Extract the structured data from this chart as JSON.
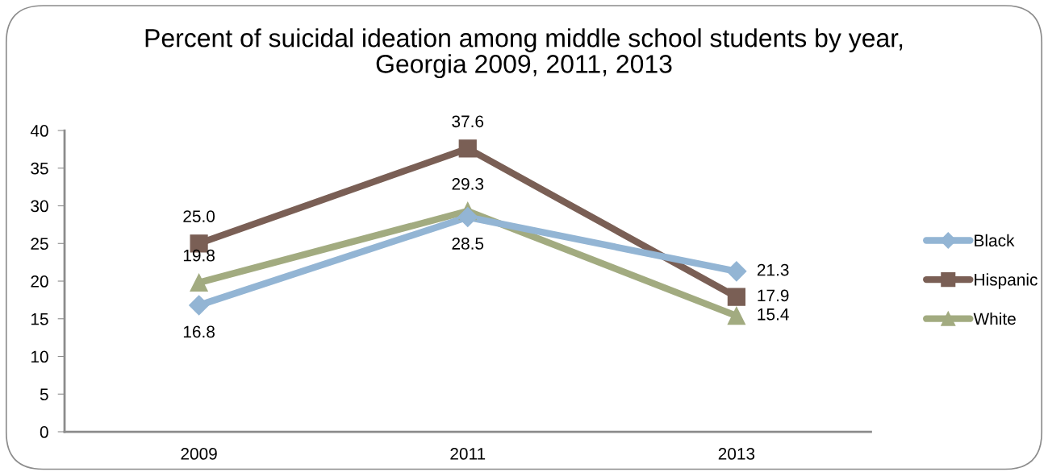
{
  "chart_data": {
    "type": "line",
    "title": "Percent of suicidal ideation among middle school students by year,\nGeorgia 2009, 2011, 2013",
    "categories": [
      "2009",
      "2011",
      "2013"
    ],
    "series": [
      {
        "name": "Black",
        "color": "#93b5d4",
        "marker": "diamond",
        "values": [
          16.8,
          28.5,
          21.3
        ],
        "value_labels": [
          "16.8",
          "28.5",
          "21.3"
        ]
      },
      {
        "name": "Hispanic",
        "color": "#7a5f55",
        "marker": "square",
        "values": [
          25.0,
          37.6,
          17.9
        ],
        "value_labels": [
          "25.0",
          "37.6",
          "17.9"
        ]
      },
      {
        "name": "White",
        "color": "#a2ab80",
        "marker": "triangle",
        "values": [
          19.8,
          29.3,
          15.4
        ],
        "value_labels": [
          "19.8",
          "29.3",
          "15.4"
        ]
      }
    ],
    "ylim": [
      0,
      40
    ],
    "yticks": [
      0,
      5,
      10,
      15,
      20,
      25,
      30,
      35,
      40
    ],
    "grid": false,
    "legend": "right",
    "line_style": "solid"
  }
}
